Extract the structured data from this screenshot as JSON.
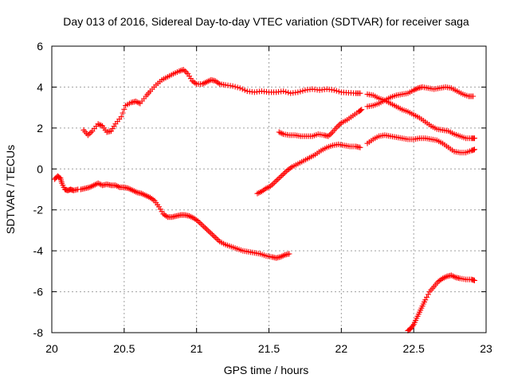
{
  "chart_data": {
    "type": "scatter",
    "title": "Day 013 of 2016, Sidereal Day-to-day VTEC variation (SDTVAR) for receiver saga",
    "xlabel": "GPS time / hours",
    "ylabel": "SDTVAR / TECUs",
    "xlim": [
      20,
      23
    ],
    "ylim": [
      -8,
      6
    ],
    "xticks": [
      20,
      20.5,
      21,
      21.5,
      22,
      22.5,
      23
    ],
    "xtick_labels": [
      "20",
      "20.5",
      "21",
      "21.5",
      "22",
      "22.5",
      "23"
    ],
    "yticks": [
      -8,
      -6,
      -4,
      -2,
      0,
      2,
      4,
      6
    ],
    "ytick_labels": [
      "-8",
      "-6",
      "-4",
      "-2",
      "0",
      "2",
      "4",
      "6"
    ],
    "grid": true,
    "marker": "+",
    "marker_color": "#ff0000",
    "series": [
      {
        "values": [
          [
            20.22,
            1.9
          ],
          [
            20.25,
            1.65
          ],
          [
            20.28,
            1.85
          ],
          [
            20.32,
            2.2
          ],
          [
            20.35,
            2.1
          ],
          [
            20.38,
            1.8
          ],
          [
            20.41,
            1.85
          ],
          [
            20.44,
            2.2
          ],
          [
            20.48,
            2.55
          ],
          [
            20.51,
            3.1
          ],
          [
            20.55,
            3.25
          ],
          [
            20.58,
            3.3
          ],
          [
            20.61,
            3.2
          ],
          [
            20.65,
            3.55
          ],
          [
            20.68,
            3.8
          ],
          [
            20.72,
            4.1
          ],
          [
            20.76,
            4.35
          ],
          [
            20.8,
            4.5
          ],
          [
            20.84,
            4.65
          ],
          [
            20.88,
            4.78
          ],
          [
            20.91,
            4.85
          ],
          [
            20.94,
            4.65
          ],
          [
            20.97,
            4.3
          ],
          [
            21.0,
            4.15
          ],
          [
            21.04,
            4.15
          ],
          [
            21.07,
            4.25
          ],
          [
            21.1,
            4.35
          ],
          [
            21.13,
            4.3
          ],
          [
            21.16,
            4.15
          ],
          [
            21.2,
            4.1
          ],
          [
            21.25,
            4.05
          ],
          [
            21.3,
            3.95
          ],
          [
            21.35,
            3.8
          ],
          [
            21.4,
            3.75
          ],
          [
            21.45,
            3.8
          ],
          [
            21.5,
            3.75
          ],
          [
            21.55,
            3.75
          ],
          [
            21.6,
            3.8
          ],
          [
            21.65,
            3.7
          ],
          [
            21.7,
            3.75
          ],
          [
            21.75,
            3.85
          ],
          [
            21.8,
            3.9
          ],
          [
            21.85,
            3.85
          ],
          [
            21.9,
            3.9
          ],
          [
            21.95,
            3.85
          ],
          [
            22.0,
            3.75
          ],
          [
            22.05,
            3.72
          ],
          [
            22.1,
            3.7
          ],
          [
            22.13,
            3.7
          ]
        ]
      },
      {
        "values": [
          [
            20.02,
            -0.5
          ],
          [
            20.04,
            -0.35
          ],
          [
            20.06,
            -0.45
          ],
          [
            20.07,
            -0.7
          ],
          [
            20.09,
            -1.0
          ],
          [
            20.11,
            -1.05
          ],
          [
            20.13,
            -1.0
          ],
          [
            20.15,
            -1.05
          ],
          [
            20.18,
            -1.0
          ]
        ]
      },
      {
        "values": [
          [
            20.2,
            -1.0
          ],
          [
            20.23,
            -0.95
          ],
          [
            20.26,
            -0.9
          ],
          [
            20.29,
            -0.8
          ],
          [
            20.32,
            -0.7
          ],
          [
            20.35,
            -0.8
          ],
          [
            20.38,
            -0.75
          ],
          [
            20.41,
            -0.8
          ],
          [
            20.44,
            -0.8
          ],
          [
            20.47,
            -0.9
          ],
          [
            20.5,
            -0.9
          ],
          [
            20.53,
            -0.95
          ],
          [
            20.56,
            -1.05
          ],
          [
            20.59,
            -1.15
          ],
          [
            20.62,
            -1.2
          ],
          [
            20.65,
            -1.3
          ],
          [
            20.68,
            -1.4
          ],
          [
            20.71,
            -1.55
          ],
          [
            20.74,
            -1.85
          ],
          [
            20.77,
            -2.2
          ],
          [
            20.8,
            -2.35
          ],
          [
            20.83,
            -2.35
          ],
          [
            20.86,
            -2.3
          ],
          [
            20.89,
            -2.25
          ],
          [
            20.92,
            -2.25
          ],
          [
            20.95,
            -2.3
          ],
          [
            20.98,
            -2.4
          ],
          [
            21.01,
            -2.55
          ],
          [
            21.04,
            -2.75
          ],
          [
            21.07,
            -2.95
          ],
          [
            21.1,
            -3.15
          ],
          [
            21.13,
            -3.35
          ],
          [
            21.16,
            -3.55
          ],
          [
            21.2,
            -3.7
          ],
          [
            21.24,
            -3.8
          ],
          [
            21.28,
            -3.9
          ],
          [
            21.32,
            -4.0
          ],
          [
            21.36,
            -4.05
          ],
          [
            21.4,
            -4.1
          ],
          [
            21.44,
            -4.15
          ],
          [
            21.48,
            -4.25
          ],
          [
            21.52,
            -4.3
          ],
          [
            21.55,
            -4.35
          ],
          [
            21.58,
            -4.3
          ],
          [
            21.61,
            -4.2
          ],
          [
            21.64,
            -4.15
          ]
        ]
      },
      {
        "values": [
          [
            21.42,
            -1.2
          ],
          [
            21.45,
            -1.1
          ],
          [
            21.48,
            -0.95
          ],
          [
            21.51,
            -0.85
          ],
          [
            21.54,
            -0.65
          ],
          [
            21.57,
            -0.45
          ],
          [
            21.6,
            -0.25
          ],
          [
            21.63,
            -0.05
          ],
          [
            21.66,
            0.1
          ],
          [
            21.7,
            0.25
          ],
          [
            21.74,
            0.4
          ],
          [
            21.78,
            0.55
          ],
          [
            21.82,
            0.7
          ],
          [
            21.86,
            0.9
          ],
          [
            21.9,
            1.05
          ],
          [
            21.94,
            1.15
          ],
          [
            21.98,
            1.2
          ],
          [
            22.02,
            1.15
          ],
          [
            22.06,
            1.1
          ],
          [
            22.1,
            1.1
          ],
          [
            22.13,
            1.05
          ]
        ]
      },
      {
        "values": [
          [
            21.57,
            1.8
          ],
          [
            21.6,
            1.7
          ],
          [
            21.64,
            1.65
          ],
          [
            21.68,
            1.65
          ],
          [
            21.72,
            1.6
          ],
          [
            21.76,
            1.6
          ],
          [
            21.8,
            1.6
          ],
          [
            21.84,
            1.7
          ],
          [
            21.88,
            1.65
          ],
          [
            21.91,
            1.6
          ],
          [
            21.94,
            1.8
          ],
          [
            21.97,
            2.05
          ],
          [
            22.0,
            2.25
          ],
          [
            22.04,
            2.4
          ],
          [
            22.08,
            2.6
          ],
          [
            22.12,
            2.8
          ],
          [
            22.14,
            2.9
          ]
        ]
      },
      {
        "values": [
          [
            22.18,
            3.65
          ],
          [
            22.22,
            3.6
          ],
          [
            22.26,
            3.45
          ],
          [
            22.3,
            3.35
          ],
          [
            22.34,
            3.5
          ],
          [
            22.38,
            3.6
          ],
          [
            22.42,
            3.65
          ],
          [
            22.46,
            3.7
          ],
          [
            22.5,
            3.85
          ],
          [
            22.53,
            3.95
          ],
          [
            22.56,
            4.0
          ],
          [
            22.6,
            3.95
          ],
          [
            22.64,
            3.9
          ],
          [
            22.68,
            3.95
          ],
          [
            22.72,
            4.0
          ],
          [
            22.76,
            3.95
          ],
          [
            22.8,
            3.8
          ],
          [
            22.84,
            3.65
          ],
          [
            22.88,
            3.55
          ],
          [
            22.91,
            3.55
          ]
        ]
      },
      {
        "values": [
          [
            22.18,
            3.05
          ],
          [
            22.22,
            3.1
          ],
          [
            22.26,
            3.2
          ],
          [
            22.3,
            3.35
          ],
          [
            22.34,
            3.2
          ],
          [
            22.38,
            3.05
          ],
          [
            22.42,
            2.9
          ],
          [
            22.46,
            2.8
          ],
          [
            22.5,
            2.65
          ],
          [
            22.54,
            2.5
          ],
          [
            22.58,
            2.3
          ],
          [
            22.62,
            2.1
          ],
          [
            22.66,
            1.95
          ],
          [
            22.7,
            1.9
          ],
          [
            22.74,
            1.85
          ],
          [
            22.78,
            1.7
          ],
          [
            22.82,
            1.6
          ],
          [
            22.86,
            1.5
          ],
          [
            22.9,
            1.5
          ],
          [
            22.92,
            1.5
          ]
        ]
      },
      {
        "values": [
          [
            22.18,
            1.25
          ],
          [
            22.22,
            1.45
          ],
          [
            22.26,
            1.6
          ],
          [
            22.3,
            1.65
          ],
          [
            22.34,
            1.6
          ],
          [
            22.38,
            1.55
          ],
          [
            22.42,
            1.5
          ],
          [
            22.46,
            1.45
          ],
          [
            22.5,
            1.45
          ],
          [
            22.54,
            1.5
          ],
          [
            22.58,
            1.5
          ],
          [
            22.62,
            1.45
          ],
          [
            22.66,
            1.4
          ],
          [
            22.7,
            1.25
          ],
          [
            22.74,
            1.05
          ],
          [
            22.78,
            0.85
          ],
          [
            22.82,
            0.8
          ],
          [
            22.86,
            0.8
          ],
          [
            22.9,
            0.9
          ],
          [
            22.92,
            0.95
          ]
        ]
      },
      {
        "values": [
          [
            22.46,
            -7.9
          ],
          [
            22.48,
            -7.8
          ],
          [
            22.5,
            -7.6
          ],
          [
            22.52,
            -7.3
          ],
          [
            22.54,
            -7.0
          ],
          [
            22.56,
            -6.7
          ],
          [
            22.58,
            -6.4
          ],
          [
            22.61,
            -6.0
          ],
          [
            22.64,
            -5.75
          ],
          [
            22.67,
            -5.5
          ],
          [
            22.7,
            -5.35
          ],
          [
            22.73,
            -5.25
          ],
          [
            22.76,
            -5.2
          ],
          [
            22.79,
            -5.3
          ],
          [
            22.82,
            -5.35
          ],
          [
            22.86,
            -5.4
          ],
          [
            22.9,
            -5.4
          ],
          [
            22.92,
            -5.45
          ]
        ]
      }
    ]
  }
}
